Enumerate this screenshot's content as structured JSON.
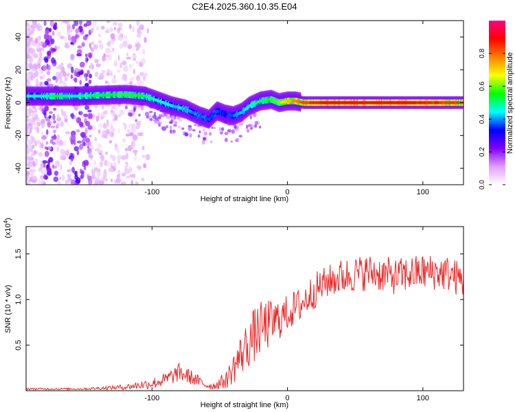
{
  "title": "C2E4.2025.360.10.35.E04",
  "colorbar": {
    "label": "Normalized spectral amplitude",
    "ticks": [
      "0.0",
      "0.2",
      "0.4",
      "0.6",
      "0.8"
    ],
    "tick_values": [
      0.0,
      0.2,
      0.4,
      0.6,
      0.8
    ],
    "range": [
      0,
      1
    ],
    "stops": [
      "#ffffff",
      "#e0a0ff",
      "#8000ff",
      "#0000ff",
      "#00ffff",
      "#00ff00",
      "#ffff00",
      "#ff8000",
      "#ff0000",
      "#ff0080"
    ]
  },
  "colors": {
    "snr_line": "#ee2222",
    "axes": "#000000",
    "background": "#ffffff"
  },
  "chart_data": [
    {
      "type": "heatmap",
      "name": "spectrogram",
      "xlabel": "Height of straight line (km)",
      "ylabel": "Frequency (Hz)",
      "xlim": [
        -193,
        130
      ],
      "ylim": [
        -50,
        50
      ],
      "xticks": [
        -100,
        0,
        100
      ],
      "yticks": [
        -40,
        -20,
        0,
        20,
        40
      ],
      "ridge": {
        "x": [
          -193,
          -170,
          -155,
          -140,
          -120,
          -105,
          -95,
          -85,
          -75,
          -65,
          -58,
          -52,
          -46,
          -40,
          -34,
          -28,
          -20,
          -12,
          -6,
          0,
          6,
          12,
          20,
          40,
          60,
          80,
          100,
          130
        ],
        "y": [
          4,
          4,
          4,
          4.5,
          5,
          4,
          1,
          -2,
          -4,
          -8,
          -10,
          -5,
          -7,
          -8,
          -6,
          -2,
          1,
          2,
          0,
          1,
          1,
          0,
          0,
          0,
          0,
          0,
          0,
          0
        ],
        "amplitude": [
          0.4,
          0.5,
          0.45,
          0.5,
          0.55,
          0.5,
          0.45,
          0.4,
          0.4,
          0.35,
          0.35,
          0.35,
          0.3,
          0.35,
          0.4,
          0.45,
          0.5,
          0.55,
          0.6,
          0.7,
          0.75,
          0.8,
          0.85,
          0.9,
          0.9,
          0.9,
          0.85,
          0.8
        ]
      }
    },
    {
      "type": "line",
      "name": "snr",
      "xlabel": "Height of straight line (km)",
      "ylabel": "SNR (10 * v/v)",
      "multiplier": "(x10^4)",
      "multiplier_base": "(x10",
      "multiplier_exp": "4",
      "multiplier_close": ")",
      "xlim": [
        -193,
        130
      ],
      "ylim": [
        0,
        1.8
      ],
      "xticks": [
        -100,
        0,
        100
      ],
      "yticks": [
        0.5,
        1.0,
        1.5
      ],
      "envelope": {
        "x": [
          -193,
          -150,
          -120,
          -100,
          -90,
          -80,
          -70,
          -60,
          -55,
          -45,
          -38,
          -32,
          -25,
          -18,
          -10,
          0,
          10,
          20,
          30,
          40,
          50,
          60,
          70,
          80,
          90,
          100,
          110,
          120,
          130
        ],
        "mean": [
          0.02,
          0.02,
          0.04,
          0.08,
          0.12,
          0.2,
          0.14,
          0.06,
          0.05,
          0.12,
          0.3,
          0.45,
          0.6,
          0.7,
          0.75,
          0.85,
          0.95,
          1.1,
          1.2,
          1.25,
          1.28,
          1.3,
          1.28,
          1.25,
          1.28,
          1.3,
          1.3,
          1.28,
          1.2
        ],
        "spread": [
          0.01,
          0.01,
          0.03,
          0.06,
          0.08,
          0.1,
          0.08,
          0.04,
          0.04,
          0.1,
          0.2,
          0.25,
          0.3,
          0.3,
          0.25,
          0.2,
          0.2,
          0.2,
          0.18,
          0.2,
          0.2,
          0.2,
          0.2,
          0.2,
          0.2,
          0.2,
          0.2,
          0.2,
          0.2
        ]
      }
    }
  ]
}
